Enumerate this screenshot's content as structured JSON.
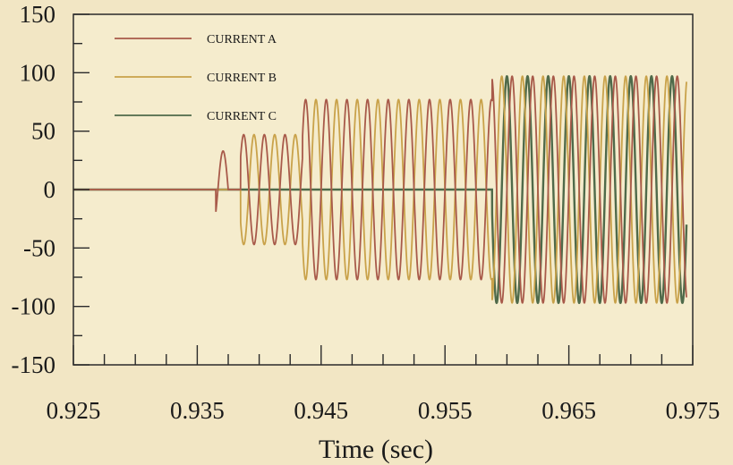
{
  "chart_data": {
    "type": "line",
    "title": "",
    "xlabel": "Time (sec)",
    "ylabel": "",
    "xlim": [
      0.925,
      0.975
    ],
    "ylim": [
      -150,
      150
    ],
    "x_ticks": [
      0.925,
      0.935,
      0.945,
      0.955,
      0.965,
      0.975
    ],
    "x_tick_labels": [
      "0.925",
      "0.935",
      "0.945",
      "0.955",
      "0.965",
      "0.975"
    ],
    "y_ticks": [
      150,
      100,
      50,
      0,
      -50,
      -100,
      -150
    ],
    "y_tick_labels": [
      "150",
      "100",
      "50",
      "0",
      "-50",
      "-100",
      "-150"
    ],
    "grid": false,
    "legend_position": "top-left",
    "frequency_hz": 600,
    "series": [
      {
        "name": "CURRENT A",
        "color": "#a85a4a",
        "phase_deg": 0,
        "amplitude_segments": [
          {
            "x": [
              0.925,
              0.9365
            ],
            "amplitude": 0
          },
          {
            "x": [
              0.9365,
              0.9375
            ],
            "amplitude": 33
          },
          {
            "x": [
              0.9375,
              0.9385
            ],
            "amplitude": 0
          },
          {
            "x": [
              0.9385,
              0.9435
            ],
            "amplitude": 47
          },
          {
            "x": [
              0.9435,
              0.9588
            ],
            "amplitude": 77
          },
          {
            "x": [
              0.9588,
              0.9745
            ],
            "amplitude": 97
          }
        ]
      },
      {
        "name": "CURRENT B",
        "color": "#c9a24a",
        "phase_deg": 180,
        "amplitude_segments": [
          {
            "x": [
              0.925,
              0.9385
            ],
            "amplitude": 0
          },
          {
            "x": [
              0.9385,
              0.9435
            ],
            "amplitude": 47
          },
          {
            "x": [
              0.9435,
              0.9588
            ],
            "amplitude": 77
          },
          {
            "x": [
              0.9588,
              0.9745
            ],
            "amplitude": 97
          }
        ]
      },
      {
        "name": "CURRENT C",
        "color": "#4f6a4a",
        "phase_deg": 90,
        "amplitude_segments": [
          {
            "x": [
              0.925,
              0.9588
            ],
            "amplitude": 0
          },
          {
            "x": [
              0.9588,
              0.9745
            ],
            "amplitude": 97
          }
        ]
      }
    ]
  }
}
